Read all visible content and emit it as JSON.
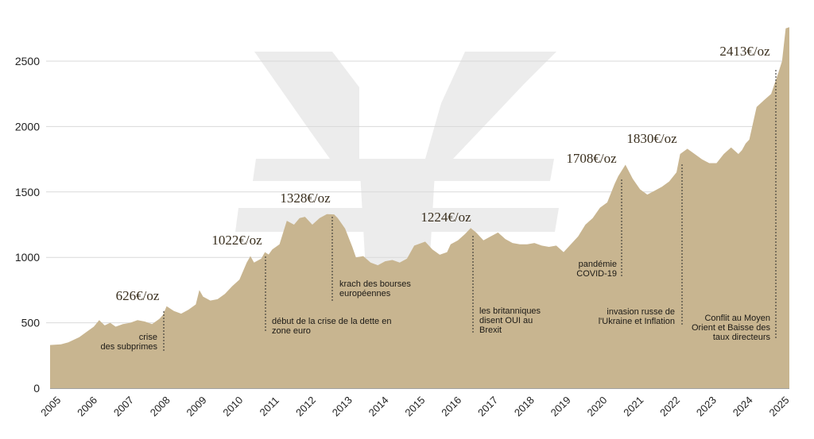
{
  "colors": {
    "area": "#c8b590",
    "grid": "#d9d9d9",
    "axis": "#444444",
    "watermark": "#ececec",
    "price_text": "#3a2f1e",
    "event_text": "#1c1a16"
  },
  "chart_data": {
    "type": "area",
    "title": "",
    "xlabel": "",
    "ylabel": "",
    "units": "€/oz",
    "xlim": [
      2005.0,
      2025.3
    ],
    "ylim": [
      0,
      2750
    ],
    "grid": "horizontal",
    "yticks": [
      0,
      500,
      1000,
      1500,
      2000,
      2500
    ],
    "xticks": [
      "2005",
      "2006",
      "2007",
      "2008",
      "2009",
      "2010",
      "2011",
      "2012",
      "2013",
      "2014",
      "2015",
      "2016",
      "2017",
      "2018",
      "2019",
      "2020",
      "2021",
      "2022",
      "2023",
      "2024",
      "2025"
    ],
    "series": [
      {
        "x": [
          2005.0,
          2005.3,
          2005.5,
          2005.8,
          2006.0,
          2006.2,
          2006.35,
          2006.5,
          2006.65,
          2006.8,
          2007.0,
          2007.2,
          2007.4,
          2007.6,
          2007.8,
          2008.0,
          2008.1,
          2008.2,
          2008.4,
          2008.6,
          2008.8,
          2009.0,
          2009.1,
          2009.2,
          2009.4,
          2009.6,
          2009.8,
          2010.0,
          2010.2,
          2010.4,
          2010.5,
          2010.6,
          2010.8,
          2010.9,
          2011.0,
          2011.1,
          2011.3,
          2011.5,
          2011.7,
          2011.85,
          2012.0,
          2012.2,
          2012.4,
          2012.6,
          2012.8,
          2012.9,
          2013.1,
          2013.3,
          2013.4,
          2013.6,
          2013.8,
          2014.0,
          2014.2,
          2014.4,
          2014.6,
          2014.8,
          2015.0,
          2015.1,
          2015.3,
          2015.5,
          2015.7,
          2015.9,
          2016.0,
          2016.2,
          2016.4,
          2016.55,
          2016.7,
          2016.9,
          2017.1,
          2017.3,
          2017.5,
          2017.7,
          2017.9,
          2018.1,
          2018.3,
          2018.5,
          2018.7,
          2018.9,
          2019.1,
          2019.3,
          2019.5,
          2019.7,
          2019.9,
          2020.1,
          2020.3,
          2020.5,
          2020.6,
          2020.8,
          2021.0,
          2021.2,
          2021.4,
          2021.6,
          2021.8,
          2022.0,
          2022.2,
          2022.3,
          2022.5,
          2022.7,
          2022.9,
          2023.1,
          2023.3,
          2023.5,
          2023.7,
          2023.9,
          2024.0,
          2024.1,
          2024.2,
          2024.4,
          2024.6,
          2024.8,
          2025.0,
          2025.1,
          2025.2,
          2025.3
        ],
        "values": [
          330,
          335,
          350,
          390,
          430,
          470,
          520,
          480,
          500,
          470,
          490,
          500,
          520,
          510,
          490,
          530,
          560,
          626,
          590,
          570,
          600,
          640,
          750,
          700,
          670,
          680,
          720,
          780,
          830,
          960,
          1010,
          960,
          990,
          1040,
          1022,
          1060,
          1100,
          1280,
          1250,
          1300,
          1310,
          1250,
          1300,
          1330,
          1328,
          1300,
          1220,
          1080,
          1000,
          1010,
          960,
          940,
          970,
          980,
          960,
          990,
          1090,
          1100,
          1120,
          1060,
          1020,
          1040,
          1100,
          1130,
          1180,
          1224,
          1190,
          1130,
          1160,
          1190,
          1140,
          1110,
          1100,
          1100,
          1110,
          1090,
          1080,
          1090,
          1040,
          1100,
          1160,
          1250,
          1300,
          1380,
          1420,
          1560,
          1620,
          1708,
          1600,
          1520,
          1480,
          1510,
          1540,
          1580,
          1650,
          1790,
          1830,
          1790,
          1750,
          1720,
          1720,
          1790,
          1840,
          1790,
          1820,
          1870,
          1900,
          2150,
          2200,
          2250,
          2413,
          2500,
          2750,
          2760
        ]
      }
    ],
    "price_annotations": [
      {
        "label": "626€/oz"
      },
      {
        "label": "1022€/oz"
      },
      {
        "label": "1328€/oz"
      },
      {
        "label": "1224€/oz"
      },
      {
        "label": "1708€/oz"
      },
      {
        "label": "1830€/oz"
      },
      {
        "label": "2413€/oz"
      }
    ],
    "event_annotations": [
      {
        "lines": [
          "crise",
          "des subprimes"
        ]
      },
      {
        "lines": [
          "début de la crise de la dette en",
          "zone euro"
        ]
      },
      {
        "lines": [
          "krach des bourses",
          "européennes"
        ]
      },
      {
        "lines": [
          "les britanniques",
          "disent OUI au",
          "Brexit"
        ]
      },
      {
        "lines": [
          "pandémie",
          "COVID-19"
        ]
      },
      {
        "lines": [
          "invasion russe de",
          "l'Ukraine et Inflation"
        ]
      },
      {
        "lines": [
          "Conflit au Moyen",
          "Orient et Baisse des",
          "taux directeurs"
        ]
      }
    ]
  }
}
